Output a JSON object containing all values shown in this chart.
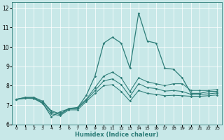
{
  "xlabel": "Humidex (Indice chaleur)",
  "xlim": [
    -0.5,
    23.5
  ],
  "ylim": [
    6.0,
    12.3
  ],
  "yticks": [
    6,
    7,
    8,
    9,
    10,
    11,
    12
  ],
  "xticks": [
    0,
    1,
    2,
    3,
    4,
    5,
    6,
    7,
    8,
    9,
    10,
    11,
    12,
    13,
    14,
    15,
    16,
    17,
    18,
    19,
    20,
    21,
    22,
    23
  ],
  "bg_color": "#c8e8e8",
  "line_color": "#2d7d78",
  "series": {
    "spiky": [
      7.3,
      7.35,
      7.35,
      7.1,
      6.4,
      6.65,
      6.8,
      6.85,
      7.5,
      8.5,
      10.2,
      10.5,
      10.2,
      8.9,
      11.75,
      10.3,
      10.2,
      8.9,
      8.85,
      8.4,
      7.6,
      7.6,
      7.7,
      7.7
    ],
    "upper": [
      7.3,
      7.4,
      7.4,
      7.2,
      6.7,
      6.55,
      6.82,
      6.88,
      7.3,
      7.9,
      8.5,
      8.7,
      8.4,
      7.7,
      8.4,
      8.2,
      8.1,
      8.0,
      8.1,
      8.1,
      7.75,
      7.75,
      7.75,
      7.8
    ],
    "mid": [
      7.3,
      7.38,
      7.38,
      7.15,
      6.65,
      6.5,
      6.8,
      6.82,
      7.25,
      7.75,
      8.25,
      8.35,
      8.05,
      7.45,
      8.1,
      7.9,
      7.85,
      7.72,
      7.75,
      7.7,
      7.55,
      7.55,
      7.58,
      7.62
    ],
    "lower": [
      7.28,
      7.35,
      7.33,
      7.08,
      6.55,
      6.45,
      6.75,
      6.75,
      7.18,
      7.6,
      8.0,
      8.05,
      7.7,
      7.2,
      7.75,
      7.6,
      7.55,
      7.48,
      7.5,
      7.48,
      7.45,
      7.45,
      7.48,
      7.52
    ]
  }
}
